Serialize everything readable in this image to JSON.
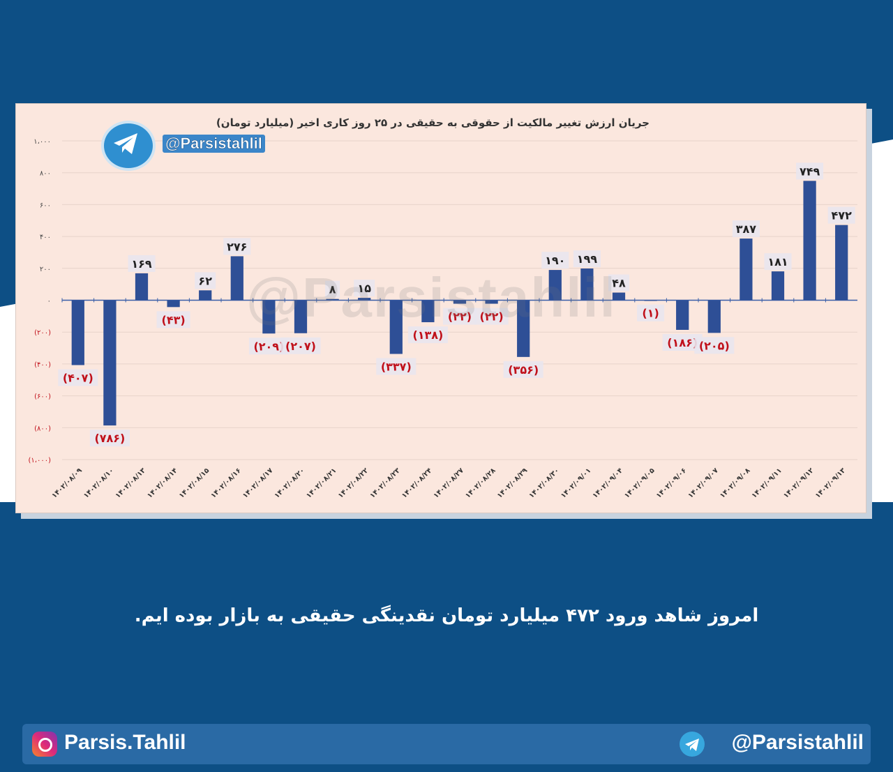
{
  "header": {
    "telegram_handle": "@Parsistahlil",
    "watermark": "@Parsistahlil"
  },
  "chart_data": {
    "type": "bar",
    "title": "جریان ارزش تغییر مالکیت از حقوقی به حقیقی در ۲۵ روز کاری اخیر (میلیارد تومان)",
    "categories": [
      "۱۴۰۲/۰۸/۰۹",
      "۱۴۰۲/۰۸/۱۰",
      "۱۴۰۲/۰۸/۱۳",
      "۱۴۰۲/۰۸/۱۴",
      "۱۴۰۲/۰۸/۱۵",
      "۱۴۰۲/۰۸/۱۶",
      "۱۴۰۲/۰۸/۱۷",
      "۱۴۰۲/۰۸/۲۰",
      "۱۴۰۲/۰۸/۲۱",
      "۱۴۰۲/۰۸/۲۲",
      "۱۴۰۲/۰۸/۲۳",
      "۱۴۰۲/۰۸/۲۴",
      "۱۴۰۲/۰۸/۲۷",
      "۱۴۰۲/۰۸/۲۸",
      "۱۴۰۲/۰۸/۲۹",
      "۱۴۰۲/۰۸/۳۰",
      "۱۴۰۲/۰۹/۰۱",
      "۱۴۰۲/۰۹/۰۴",
      "۱۴۰۲/۰۹/۰۵",
      "۱۴۰۲/۰۹/۰۶",
      "۱۴۰۲/۰۹/۰۷",
      "۱۴۰۲/۰۹/۰۸",
      "۱۴۰۲/۰۹/۱۱",
      "۱۴۰۲/۰۹/۱۲",
      "۱۴۰۲/۰۹/۱۳"
    ],
    "values": [
      -407,
      -786,
      169,
      -43,
      62,
      276,
      -209,
      -207,
      8,
      15,
      -337,
      -138,
      -22,
      -22,
      -356,
      190,
      199,
      48,
      -1,
      -186,
      -205,
      387,
      181,
      749,
      472
    ],
    "labels": [
      "(۴۰۷)",
      "(۷۸۶)",
      "۱۶۹",
      "(۴۳)",
      "۶۲",
      "۲۷۶",
      "(۲۰۹)",
      "(۲۰۷)",
      "۸",
      "۱۵",
      "(۳۳۷)",
      "(۱۳۸)",
      "(۲۲)",
      "(۲۲)",
      "(۳۵۶)",
      "۱۹۰",
      "۱۹۹",
      "۴۸",
      "(۱)",
      "(۱۸۶)",
      "(۲۰۵)",
      "۳۸۷",
      "۱۸۱",
      "۷۴۹",
      "۴۷۲"
    ],
    "yticks": [
      1000,
      800,
      600,
      400,
      200,
      0,
      -200,
      -400,
      -600,
      -800,
      -1000
    ],
    "ytick_labels": [
      "۱،۰۰۰",
      "۸۰۰",
      "۶۰۰",
      "۴۰۰",
      "۲۰۰",
      "۰",
      "(۲۰۰)",
      "(۴۰۰)",
      "(۶۰۰)",
      "(۸۰۰)",
      "(۱،۰۰۰)"
    ],
    "ylim": [
      -1000,
      1000
    ],
    "grid": true,
    "bar_color": "#2e4f96",
    "negative_label_color": "#c0101a",
    "positive_label_color": "#222222"
  },
  "caption": "امروز شاهد ورود ۴۷۲ میلیارد تومان نقدینگی حقیقی به بازار بوده ایم.",
  "footer": {
    "instagram": "Parsis.Tahlil",
    "telegram": "@Parsistahlil"
  }
}
